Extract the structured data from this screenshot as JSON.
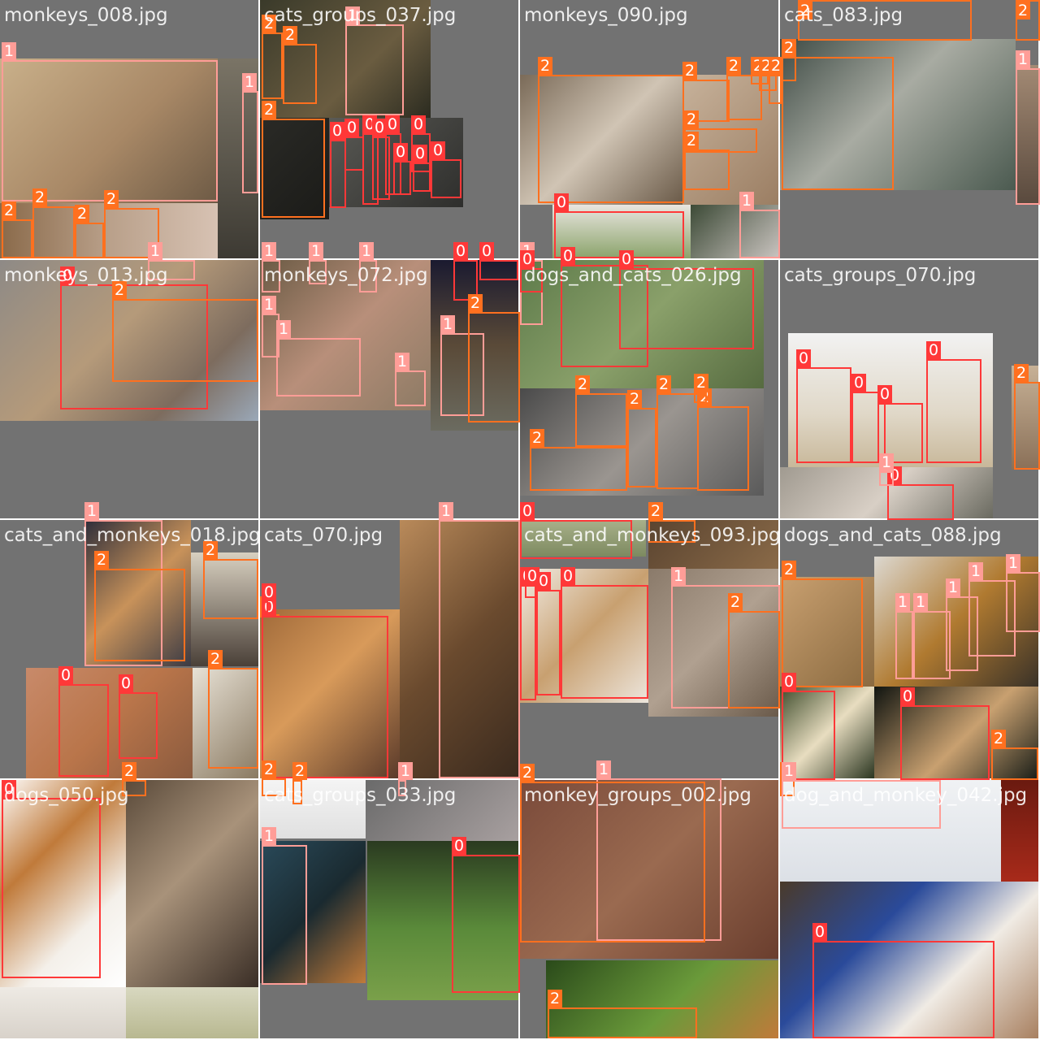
{
  "mosaic": {
    "tiles": [
      {
        "filename": "monkeys_008.jpg"
      },
      {
        "filename": "cats_groups_037.jpg"
      },
      {
        "filename": "monkeys_090.jpg"
      },
      {
        "filename": "cats_083.jpg"
      },
      {
        "filename": "monkeys_013.jpg"
      },
      {
        "filename": "monkeys_072.jpg"
      },
      {
        "filename": "dogs_and_cats_026.jpg"
      },
      {
        "filename": "cats_groups_070.jpg"
      },
      {
        "filename": "cats_and_monkeys_018.jpg"
      },
      {
        "filename": "cats_070.jpg"
      },
      {
        "filename": "cats_and_monkeys_093.jpg"
      },
      {
        "filename": "dogs_and_cats_088.jpg"
      },
      {
        "filename": "dogs_050.jpg"
      },
      {
        "filename": "cats_groups_033.jpg"
      },
      {
        "filename": "monkey_groups_002.jpg"
      },
      {
        "filename": "dog_and_monkey_042.jpg"
      }
    ]
  },
  "classes": {
    "0": "0",
    "1": "1",
    "2": "2"
  },
  "colors": {
    "class_0": "#ff3838",
    "class_1": "#ff9d97",
    "class_2": "#ff701f",
    "tile_background": "#727272",
    "divider": "#ffffff"
  },
  "detections": [
    {
      "tile": 0,
      "label": "1"
    },
    {
      "tile": 0,
      "label": "1"
    },
    {
      "tile": 0,
      "label": "2"
    },
    {
      "tile": 0,
      "label": "2"
    },
    {
      "tile": 0,
      "label": "2"
    },
    {
      "tile": 0,
      "label": "2"
    },
    {
      "tile": 0,
      "label": "1"
    },
    {
      "tile": 1,
      "label": "2"
    },
    {
      "tile": 1,
      "label": "2"
    },
    {
      "tile": 1,
      "label": "1"
    },
    {
      "tile": 1,
      "label": "2"
    },
    {
      "tile": 1,
      "label": "0"
    },
    {
      "tile": 1,
      "label": "0"
    },
    {
      "tile": 1,
      "label": "0"
    },
    {
      "tile": 1,
      "label": "0"
    },
    {
      "tile": 1,
      "label": "0"
    },
    {
      "tile": 1,
      "label": "0"
    },
    {
      "tile": 1,
      "label": "0"
    },
    {
      "tile": 1,
      "label": "0"
    },
    {
      "tile": 1,
      "label": "0"
    },
    {
      "tile": 1,
      "label": "1"
    },
    {
      "tile": 1,
      "label": "1"
    },
    {
      "tile": 1,
      "label": "1"
    },
    {
      "tile": 1,
      "label": "0"
    },
    {
      "tile": 1,
      "label": "0"
    },
    {
      "tile": 2,
      "label": "2"
    },
    {
      "tile": 2,
      "label": "2"
    },
    {
      "tile": 2,
      "label": "2"
    },
    {
      "tile": 2,
      "label": "2"
    },
    {
      "tile": 2,
      "label": "2"
    },
    {
      "tile": 2,
      "label": "2"
    },
    {
      "tile": 2,
      "label": "2"
    },
    {
      "tile": 2,
      "label": "2"
    },
    {
      "tile": 2,
      "label": "0"
    },
    {
      "tile": 2,
      "label": "1"
    },
    {
      "tile": 3,
      "label": "2"
    },
    {
      "tile": 3,
      "label": "2"
    },
    {
      "tile": 3,
      "label": "2"
    },
    {
      "tile": 3,
      "label": "1"
    },
    {
      "tile": 3,
      "label": "2"
    },
    {
      "tile": 4,
      "label": "0"
    },
    {
      "tile": 4,
      "label": "2"
    },
    {
      "tile": 5,
      "label": "1"
    },
    {
      "tile": 5,
      "label": "1"
    },
    {
      "tile": 5,
      "label": "1"
    },
    {
      "tile": 5,
      "label": "1"
    },
    {
      "tile": 5,
      "label": "2"
    },
    {
      "tile": 5,
      "label": "1"
    },
    {
      "tile": 6,
      "label": "0"
    },
    {
      "tile": 6,
      "label": "0"
    },
    {
      "tile": 6,
      "label": "0"
    },
    {
      "tile": 6,
      "label": "2"
    },
    {
      "tile": 6,
      "label": "2"
    },
    {
      "tile": 6,
      "label": "2"
    },
    {
      "tile": 6,
      "label": "2"
    },
    {
      "tile": 6,
      "label": "2"
    },
    {
      "tile": 6,
      "label": "2"
    },
    {
      "tile": 7,
      "label": "0"
    },
    {
      "tile": 7,
      "label": "0"
    },
    {
      "tile": 7,
      "label": "0"
    },
    {
      "tile": 7,
      "label": "0"
    },
    {
      "tile": 7,
      "label": "0"
    },
    {
      "tile": 7,
      "label": "2"
    },
    {
      "tile": 7,
      "label": "1"
    },
    {
      "tile": 8,
      "label": "1"
    },
    {
      "tile": 8,
      "label": "2"
    },
    {
      "tile": 8,
      "label": "2"
    },
    {
      "tile": 8,
      "label": "2"
    },
    {
      "tile": 8,
      "label": "0"
    },
    {
      "tile": 8,
      "label": "0"
    },
    {
      "tile": 8,
      "label": "2"
    },
    {
      "tile": 8,
      "label": "2"
    },
    {
      "tile": 8,
      "label": "0"
    },
    {
      "tile": 9,
      "label": "0"
    },
    {
      "tile": 9,
      "label": "1"
    },
    {
      "tile": 9,
      "label": "2"
    },
    {
      "tile": 9,
      "label": "2"
    },
    {
      "tile": 9,
      "label": "1"
    },
    {
      "tile": 10,
      "label": "0"
    },
    {
      "tile": 10,
      "label": "2"
    },
    {
      "tile": 10,
      "label": "0"
    },
    {
      "tile": 10,
      "label": "0"
    },
    {
      "tile": 10,
      "label": "0"
    },
    {
      "tile": 10,
      "label": "0"
    },
    {
      "tile": 10,
      "label": "1"
    },
    {
      "tile": 10,
      "label": "2"
    },
    {
      "tile": 11,
      "label": "2"
    },
    {
      "tile": 11,
      "label": "1"
    },
    {
      "tile": 11,
      "label": "1"
    },
    {
      "tile": 11,
      "label": "1"
    },
    {
      "tile": 11,
      "label": "1"
    },
    {
      "tile": 11,
      "label": "1"
    },
    {
      "tile": 11,
      "label": "0"
    },
    {
      "tile": 11,
      "label": "0"
    },
    {
      "tile": 11,
      "label": "2"
    },
    {
      "tile": 11,
      "label": "2"
    },
    {
      "tile": 12,
      "label": "0"
    },
    {
      "tile": 13,
      "label": "1"
    },
    {
      "tile": 13,
      "label": "0"
    },
    {
      "tile": 14,
      "label": "1"
    },
    {
      "tile": 14,
      "label": "2"
    },
    {
      "tile": 14,
      "label": "2"
    },
    {
      "tile": 15,
      "label": "1"
    },
    {
      "tile": 15,
      "label": "0"
    }
  ]
}
